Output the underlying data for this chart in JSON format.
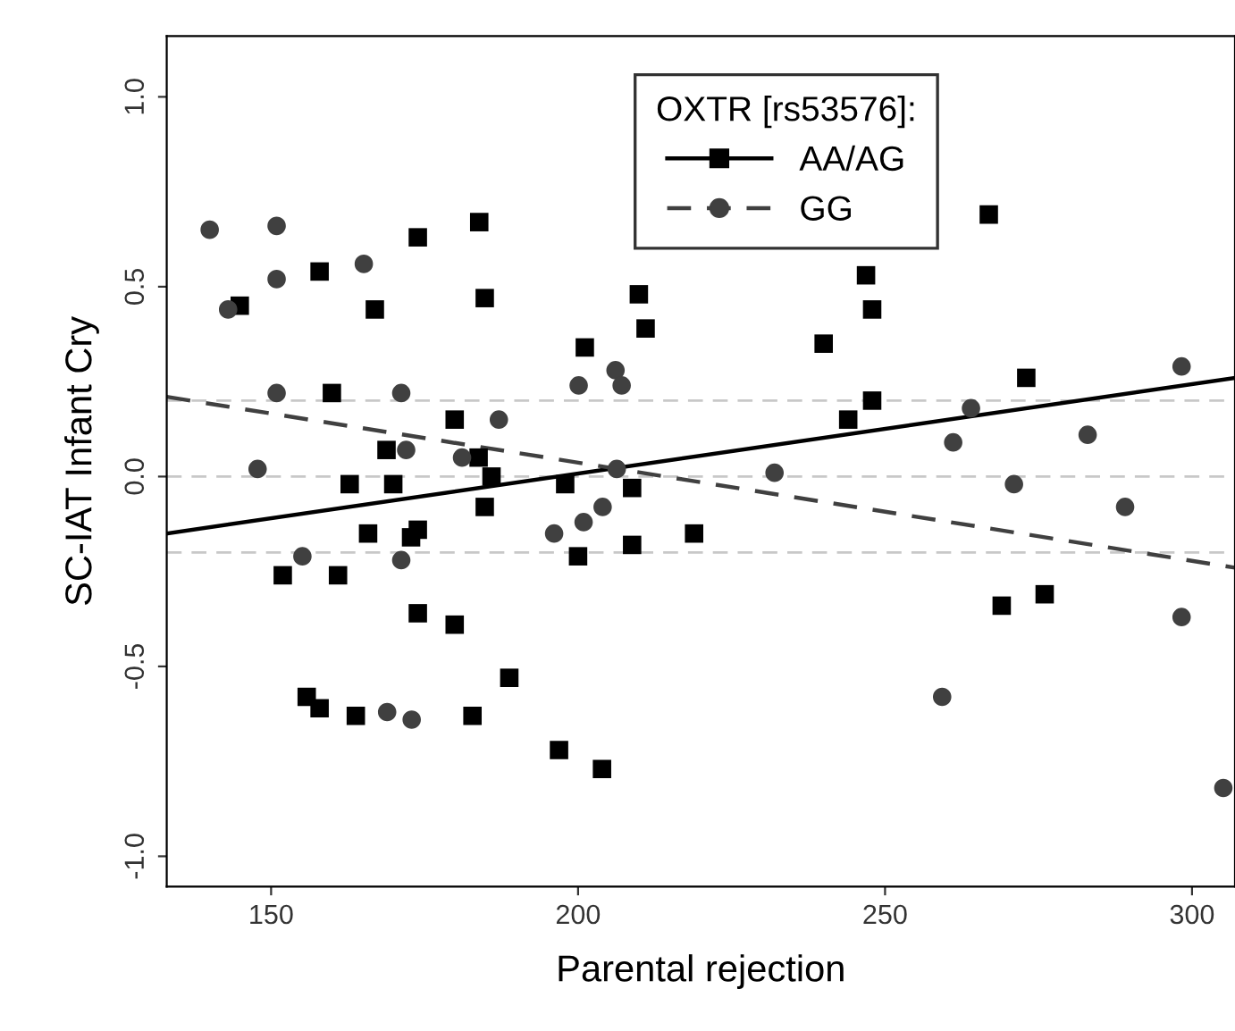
{
  "chart_data": {
    "type": "scatter",
    "xlabel": "Parental rejection",
    "ylabel": "SC-IAT Infant Cry",
    "legend_title": "OXTR [rs53576]:",
    "legend": "top",
    "grid": false,
    "xlim": [
      133,
      307
    ],
    "ylim": [
      -1.08,
      1.16
    ],
    "xticks": [
      150,
      200,
      250,
      300
    ],
    "yticks": [
      {
        "value": -1.0,
        "label": "-1.0"
      },
      {
        "value": -0.5,
        "label": "-0.5"
      },
      {
        "value": 0.0,
        "label": "0.0"
      },
      {
        "value": 0.5,
        "label": "0.5"
      },
      {
        "value": 1.0,
        "label": "1.0"
      }
    ],
    "ref_lines": [
      {
        "axis": "y",
        "value": 0.2,
        "label": null,
        "color": "#c8c8c8",
        "line_style": "dashed"
      },
      {
        "axis": "y",
        "value": 0.0,
        "label": null,
        "color": "#c8c8c8",
        "line_style": "dashed"
      },
      {
        "axis": "y",
        "value": -0.2,
        "label": null,
        "color": "#c8c8c8",
        "line_style": "dashed"
      }
    ],
    "series": [
      {
        "name": "AA/AG",
        "marker": "square",
        "color": "#000000",
        "x": [
          144.9,
          157.9,
          173.9,
          183.9,
          166.9,
          184.8,
          209.9,
          211.0,
          201.1,
          159.9,
          179.9,
          168.8,
          183.8,
          185.9,
          162.8,
          169.9,
          197.9,
          208.8,
          184.8,
          165.8,
          172.8,
          173.9,
          208.8,
          200.0,
          151.9,
          160.9,
          173.9,
          179.9,
          155.8,
          157.9,
          163.8,
          182.8,
          188.8,
          196.9,
          203.9,
          266.9,
          246.9,
          247.9,
          240.0,
          273.0,
          247.9,
          244.0,
          218.9,
          269.0,
          276.0
        ],
        "values": [
          0.45,
          0.54,
          0.63,
          0.67,
          0.44,
          0.47,
          0.48,
          0.39,
          0.34,
          0.22,
          0.15,
          0.07,
          0.05,
          0.0,
          -0.02,
          -0.02,
          -0.02,
          -0.03,
          -0.08,
          -0.15,
          -0.16,
          -0.14,
          -0.18,
          -0.21,
          -0.26,
          -0.26,
          -0.36,
          -0.39,
          -0.58,
          -0.61,
          -0.63,
          -0.63,
          -0.53,
          -0.72,
          -0.77,
          0.69,
          0.53,
          0.44,
          0.35,
          0.26,
          0.2,
          0.15,
          -0.15,
          -0.34,
          -0.31
        ]
      },
      {
        "name": "GG",
        "marker": "circle",
        "color": "#404040",
        "x": [
          140.0,
          150.9,
          150.9,
          143.0,
          165.1,
          150.9,
          171.2,
          187.1,
          200.1,
          206.1,
          207.1,
          147.8,
          172.0,
          181.1,
          206.3,
          204.0,
          200.9,
          196.1,
          155.1,
          171.2,
          168.9,
          172.9,
          298.3,
          264.0,
          261.1,
          283.0,
          232.0,
          271.0,
          289.1,
          298.3,
          259.3,
          305.1
        ],
        "values": [
          0.65,
          0.66,
          0.52,
          0.44,
          0.56,
          0.22,
          0.22,
          0.15,
          0.24,
          0.28,
          0.24,
          0.02,
          0.07,
          0.05,
          0.02,
          -0.08,
          -0.12,
          -0.15,
          -0.21,
          -0.22,
          -0.62,
          -0.64,
          0.29,
          0.18,
          0.09,
          0.11,
          0.01,
          -0.02,
          -0.08,
          -0.37,
          -0.58,
          -0.82
        ]
      },
      {
        "type": "line",
        "line_style": "solid",
        "color": "#000000",
        "x": [
          133,
          307
        ],
        "values": [
          -0.15,
          0.26
        ]
      },
      {
        "type": "line",
        "line_style": "dashed",
        "color": "#404040",
        "x": [
          133,
          307
        ],
        "values": [
          0.21,
          -0.24
        ]
      }
    ]
  }
}
